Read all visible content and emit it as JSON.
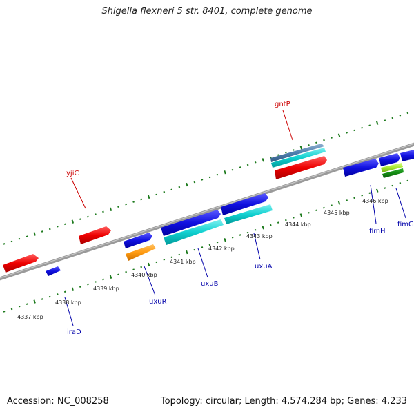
{
  "title": "Shigella flexneri 5 str. 8401, complete genome",
  "footer": {
    "accession": "Accession: NC_008258",
    "summary": "Topology: circular; Length: 4,574,284 bp; Genes: 4,233"
  },
  "colors": {
    "backbone": "#8a8a8a",
    "tick": "#1d7a1d",
    "label_forward": "#cc0000",
    "label_reverse": "#0000aa",
    "scale_text": "#222222"
  },
  "scale_labels": [
    "4337 kbp",
    "4338 kbp",
    "4339 kbp",
    "4340 kbp",
    "4341 kbp",
    "4342 kbp",
    "4343 kbp",
    "4344 kbp",
    "4345 kbp",
    "4346 kbp"
  ],
  "gene_labels": {
    "yjiC": "yjiC",
    "gntP": "gntP",
    "iraD": "iraD",
    "uxuR": "uxuR",
    "uxuB": "uxuB",
    "uxuA": "uxuA",
    "fimH": "fimH",
    "fimG": "fimG"
  }
}
